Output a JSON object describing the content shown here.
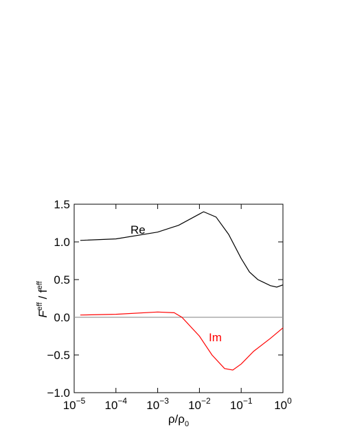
{
  "chart_data": {
    "type": "line",
    "x_label": "ρ/ρ0",
    "y_label": "Feff / feff",
    "xscale": "log",
    "xlim": [
      1e-05,
      1
    ],
    "xticks": [
      {
        "value": 1e-05,
        "label": "10−5"
      },
      {
        "value": 0.0001,
        "label": "10−4"
      },
      {
        "value": 0.001,
        "label": "10−3"
      },
      {
        "value": 0.01,
        "label": "10−2"
      },
      {
        "value": 0.1,
        "label": "10−1"
      },
      {
        "value": 1,
        "label": "100"
      }
    ],
    "ylim": [
      -1,
      1.5
    ],
    "yticks": [
      {
        "value": -1,
        "label": "−1.0"
      },
      {
        "value": -0.5,
        "label": "−0.5"
      },
      {
        "value": 0,
        "label": "0.0"
      },
      0.5,
      {
        "value": 1,
        "label": "1.0"
      },
      1.5
    ],
    "zero_line": true,
    "series": [
      {
        "name": "Re",
        "color": "#000000",
        "x": [
          1.4e-05,
          0.0001,
          0.001,
          0.00316,
          0.01,
          0.0126,
          0.025,
          0.05,
          0.1,
          0.158,
          0.25,
          0.5,
          0.71,
          1
        ],
        "values": [
          1.02,
          1.04,
          1.13,
          1.22,
          1.37,
          1.4,
          1.33,
          1.1,
          0.78,
          0.6,
          0.5,
          0.42,
          0.4,
          0.43
        ]
      },
      {
        "name": "Im",
        "color": "#ff0000",
        "x": [
          1.4e-05,
          0.0001,
          0.001,
          0.0025,
          0.0038,
          0.01,
          0.02,
          0.04,
          0.063,
          0.1,
          0.2,
          0.5,
          1
        ],
        "values": [
          0.03,
          0.04,
          0.07,
          0.06,
          0.0,
          -0.25,
          -0.5,
          -0.68,
          -0.7,
          -0.62,
          -0.45,
          -0.28,
          -0.14
        ]
      }
    ]
  }
}
